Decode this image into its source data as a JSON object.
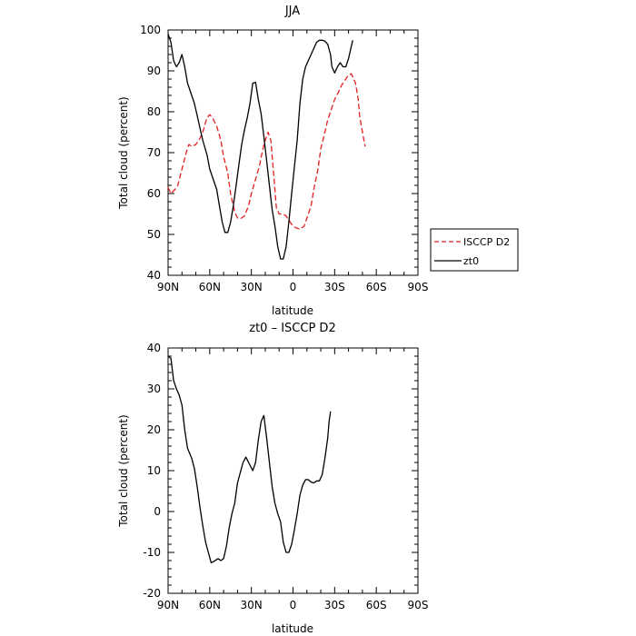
{
  "chart_data": [
    {
      "type": "line",
      "title": "JJA",
      "xlabel": "latitude",
      "ylabel": "Total cloud (percent)",
      "xlim": [
        90,
        -90
      ],
      "ylim": [
        40,
        100
      ],
      "xticks": [
        90,
        60,
        30,
        0,
        -30,
        -60,
        -90
      ],
      "xtick_labels": [
        "90N",
        "60N",
        "30N",
        "0",
        "30S",
        "60S",
        "90S"
      ],
      "yticks": [
        40,
        50,
        60,
        70,
        80,
        90,
        100
      ],
      "legend_position": "right",
      "series": [
        {
          "name": "ISCCP D2",
          "color": "#e02020",
          "dash": "dashed",
          "points": [
            [
              90,
              61.5
            ],
            [
              88,
              60
            ],
            [
              85,
              61
            ],
            [
              83,
              62
            ],
            [
              80,
              66
            ],
            [
              77,
              70
            ],
            [
              75,
              72
            ],
            [
              73,
              71.5
            ],
            [
              70,
              72
            ],
            [
              67,
              73.5
            ],
            [
              65,
              75
            ],
            [
              62,
              78.5
            ],
            [
              60,
              79.3
            ],
            [
              58,
              78.5
            ],
            [
              55,
              76.5
            ],
            [
              52,
              73
            ],
            [
              50,
              69
            ],
            [
              47,
              65
            ],
            [
              45,
              60
            ],
            [
              42,
              55.5
            ],
            [
              40,
              54
            ],
            [
              38,
              53.8
            ],
            [
              35,
              54.5
            ],
            [
              32,
              57
            ],
            [
              30,
              60
            ],
            [
              27,
              63.5
            ],
            [
              24,
              67
            ],
            [
              22,
              70.5
            ],
            [
              20,
              73
            ],
            [
              18,
              75
            ],
            [
              16,
              73
            ],
            [
              14,
              65
            ],
            [
              12,
              56.5
            ],
            [
              10,
              55
            ],
            [
              7,
              55
            ],
            [
              5,
              54.5
            ],
            [
              2,
              53
            ],
            [
              0,
              52
            ],
            [
              -3,
              51.5
            ],
            [
              -5,
              51.3
            ],
            [
              -8,
              52
            ],
            [
              -10,
              54
            ],
            [
              -13,
              57
            ],
            [
              -15,
              61
            ],
            [
              -18,
              66
            ],
            [
              -20,
              71
            ],
            [
              -23,
              75
            ],
            [
              -25,
              78
            ],
            [
              -28,
              81
            ],
            [
              -30,
              83
            ],
            [
              -33,
              85
            ],
            [
              -35,
              86.5
            ],
            [
              -38,
              88
            ],
            [
              -40,
              89
            ],
            [
              -42,
              89.3
            ],
            [
              -45,
              87
            ],
            [
              -47,
              83
            ],
            [
              -48,
              79
            ],
            [
              -50,
              75
            ],
            [
              -52,
              71.5
            ]
          ]
        },
        {
          "name": "zt0",
          "color": "#000000",
          "dash": "solid",
          "points": [
            [
              90,
              99
            ],
            [
              88,
              97
            ],
            [
              86,
              92.5
            ],
            [
              84,
              91
            ],
            [
              82,
              92
            ],
            [
              80,
              94
            ],
            [
              78,
              91
            ],
            [
              76,
              87
            ],
            [
              73,
              84
            ],
            [
              71,
              82
            ],
            [
              69,
              79
            ],
            [
              67,
              76
            ],
            [
              65,
              73
            ],
            [
              62,
              69.5
            ],
            [
              60,
              66
            ],
            [
              58,
              64
            ],
            [
              55,
              61
            ],
            [
              53,
              57
            ],
            [
              51,
              53
            ],
            [
              49,
              50.5
            ],
            [
              47,
              50.5
            ],
            [
              45,
              53
            ],
            [
              43,
              57
            ],
            [
              41,
              62
            ],
            [
              39,
              67
            ],
            [
              37,
              72
            ],
            [
              35,
              75.5
            ],
            [
              33,
              78.5
            ],
            [
              31,
              82
            ],
            [
              29,
              87
            ],
            [
              27,
              87.2
            ],
            [
              25,
              83
            ],
            [
              23,
              79.5
            ],
            [
              21,
              74
            ],
            [
              19,
              68
            ],
            [
              17,
              62
            ],
            [
              15,
              56
            ],
            [
              13,
              52
            ],
            [
              11,
              47
            ],
            [
              9,
              44
            ],
            [
              7,
              44
            ],
            [
              5,
              47
            ],
            [
              3,
              53
            ],
            [
              1,
              60
            ],
            [
              -1,
              66.5
            ],
            [
              -3,
              73
            ],
            [
              -5,
              82
            ],
            [
              -7,
              88
            ],
            [
              -9,
              91
            ],
            [
              -11,
              92.5
            ],
            [
              -13,
              94
            ],
            [
              -15,
              95.5
            ],
            [
              -17,
              97
            ],
            [
              -19,
              97.5
            ],
            [
              -21,
              97.5
            ],
            [
              -23,
              97.3
            ],
            [
              -25,
              96.5
            ],
            [
              -27,
              94
            ],
            [
              -28,
              91
            ],
            [
              -30,
              89.5
            ],
            [
              -32,
              91
            ],
            [
              -34,
              92
            ],
            [
              -36,
              91
            ],
            [
              -38,
              91
            ],
            [
              -40,
              93
            ],
            [
              -43,
              97.5
            ]
          ]
        }
      ]
    },
    {
      "type": "line",
      "title": "zt0 – ISCCP D2",
      "xlabel": "latitude",
      "ylabel": "Total cloud (percent)",
      "xlim": [
        90,
        -90
      ],
      "ylim": [
        -20,
        40
      ],
      "xticks": [
        90,
        60,
        30,
        0,
        -30,
        -60,
        -90
      ],
      "xtick_labels": [
        "90N",
        "60N",
        "30N",
        "0",
        "30S",
        "60S",
        "90S"
      ],
      "yticks": [
        -20,
        -10,
        0,
        10,
        20,
        30,
        40
      ],
      "series": [
        {
          "color": "#000000",
          "dash": "solid",
          "points": [
            [
              90,
              38
            ],
            [
              88,
              37.5
            ],
            [
              86,
              32
            ],
            [
              84,
              30
            ],
            [
              82,
              28.5
            ],
            [
              80,
              26
            ],
            [
              78,
              20
            ],
            [
              76,
              15.5
            ],
            [
              73,
              13
            ],
            [
              71,
              10.5
            ],
            [
              69,
              6
            ],
            [
              67,
              1
            ],
            [
              65,
              -3.5
            ],
            [
              63,
              -7.5
            ],
            [
              61,
              -10
            ],
            [
              59,
              -12.5
            ],
            [
              57,
              -12.2
            ],
            [
              54,
              -11.5
            ],
            [
              52,
              -12
            ],
            [
              50,
              -11.5
            ],
            [
              48,
              -8.5
            ],
            [
              46,
              -4
            ],
            [
              44,
              -0.5
            ],
            [
              42,
              2
            ],
            [
              40,
              7
            ],
            [
              38,
              9.5
            ],
            [
              36,
              12
            ],
            [
              34,
              13.3
            ],
            [
              32,
              12
            ],
            [
              29,
              10
            ],
            [
              27,
              12
            ],
            [
              25,
              17.5
            ],
            [
              23,
              22
            ],
            [
              21,
              23.5
            ],
            [
              19,
              18
            ],
            [
              17,
              12
            ],
            [
              15,
              6
            ],
            [
              13,
              2
            ],
            [
              11,
              -0.5
            ],
            [
              9,
              -2.5
            ],
            [
              7,
              -7.5
            ],
            [
              5,
              -10
            ],
            [
              3,
              -10
            ],
            [
              1,
              -8
            ],
            [
              -1,
              -4.5
            ],
            [
              -3,
              -0.5
            ],
            [
              -5,
              4
            ],
            [
              -7,
              6.5
            ],
            [
              -9,
              7.8
            ],
            [
              -11,
              7.8
            ],
            [
              -13,
              7.2
            ],
            [
              -15,
              7
            ],
            [
              -17,
              7.5
            ],
            [
              -19,
              7.5
            ],
            [
              -21,
              9
            ],
            [
              -23,
              13
            ],
            [
              -25,
              18
            ],
            [
              -26,
              22
            ],
            [
              -27,
              24.5
            ]
          ]
        }
      ]
    }
  ],
  "legend": {
    "items": [
      "ISCCP D2",
      "zt0"
    ]
  }
}
